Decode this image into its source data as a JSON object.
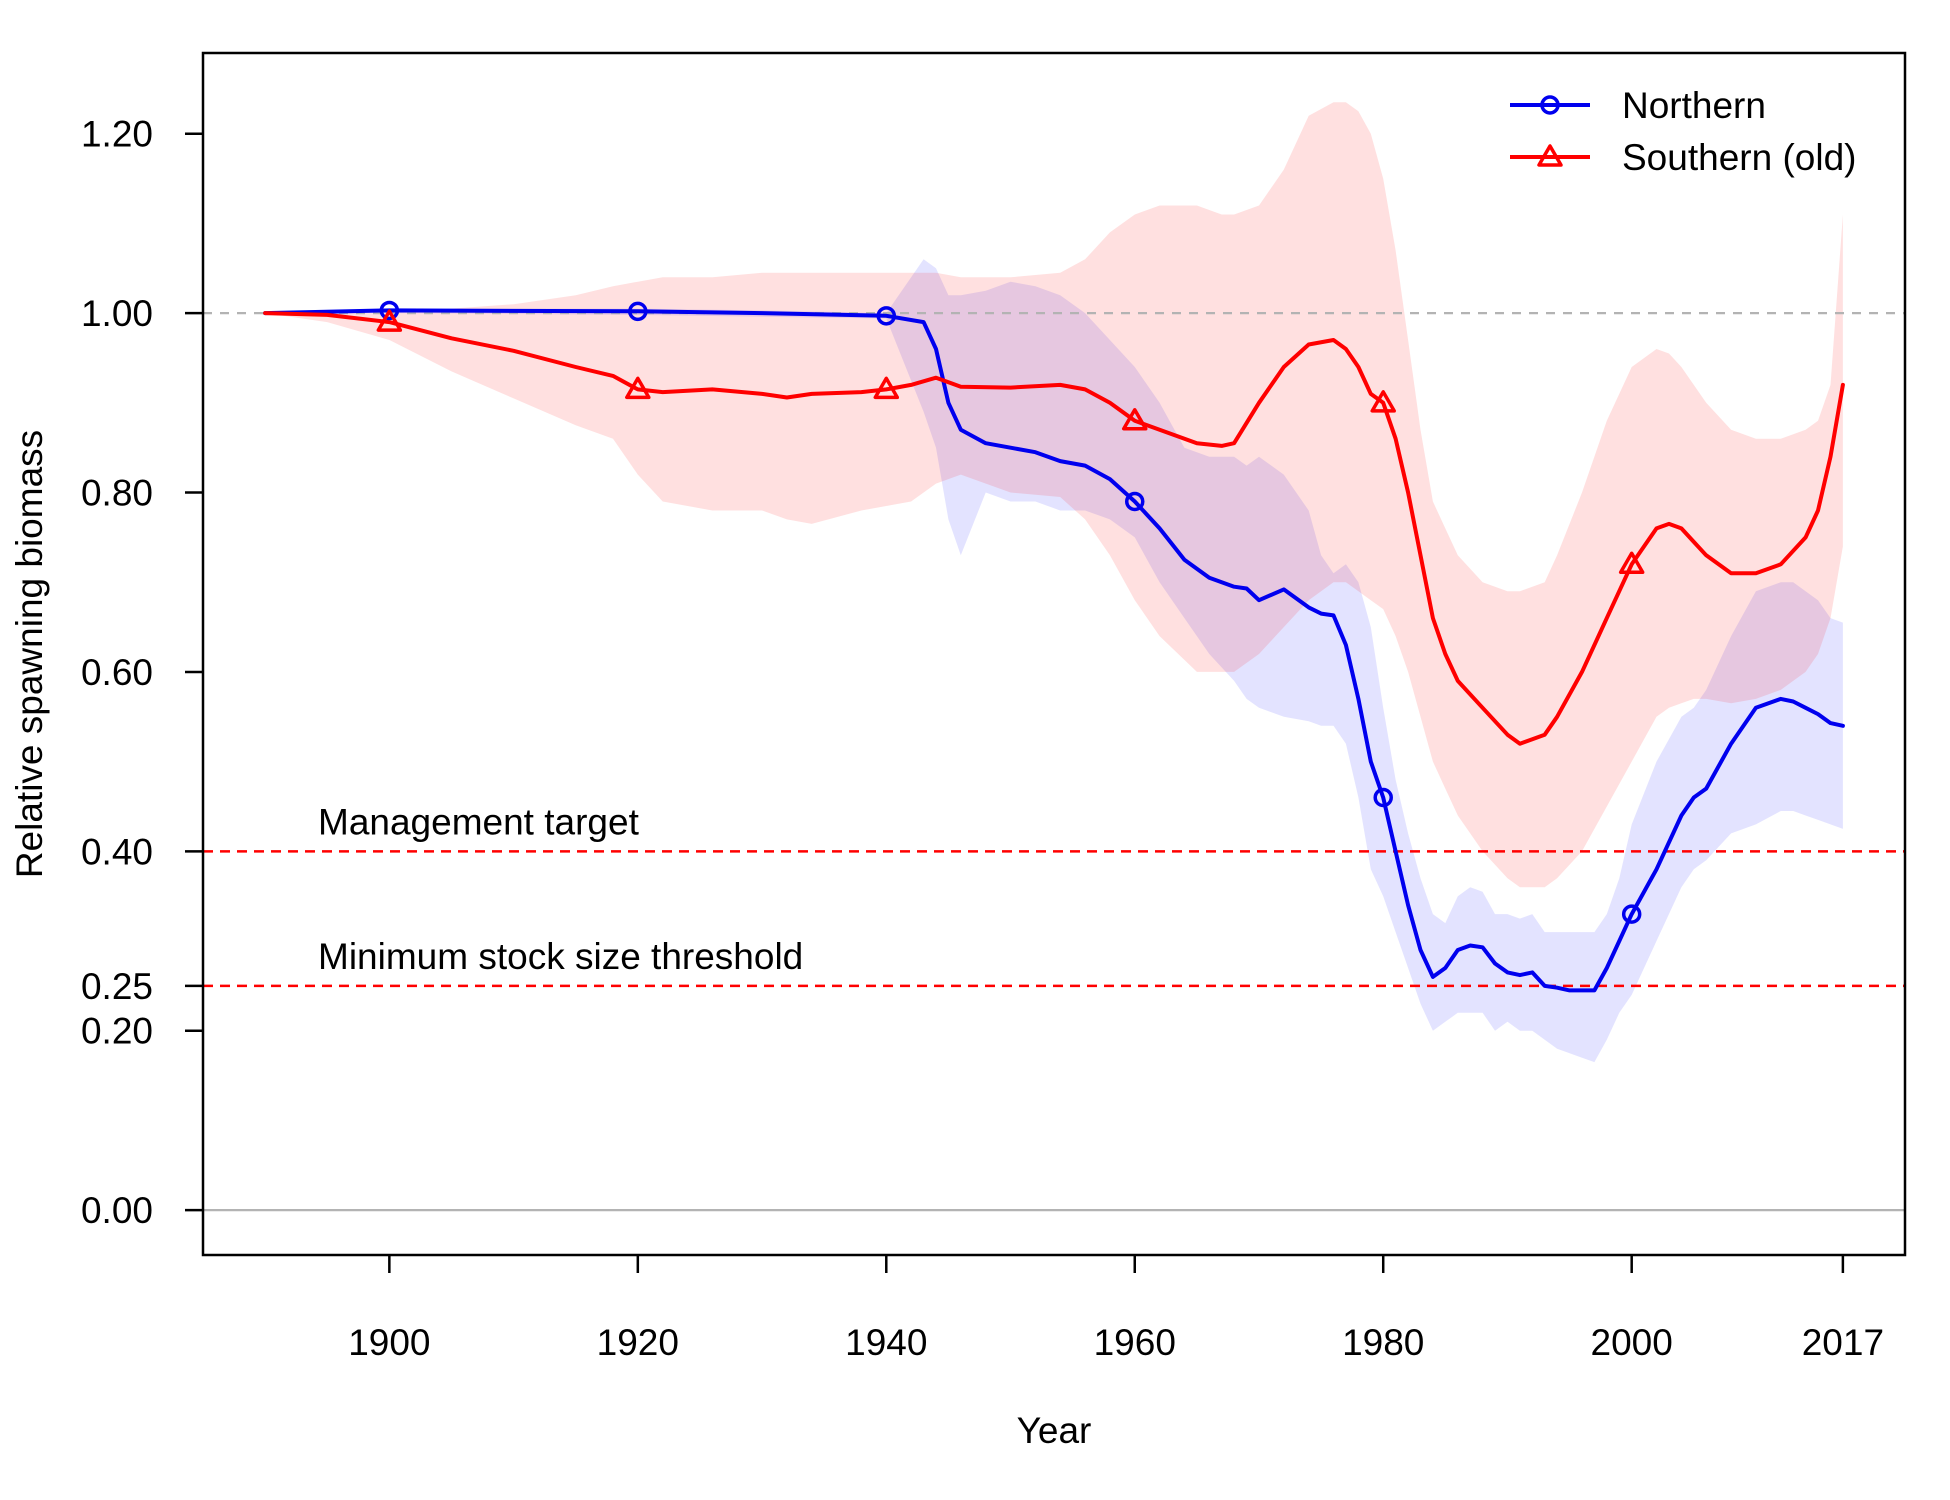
{
  "chart_data": {
    "type": "line",
    "xlabel": "Year",
    "ylabel": "Relative spawning biomass",
    "xlim": [
      1885,
      2022
    ],
    "ylim": [
      -0.05,
      1.29
    ],
    "x_ticks": [
      1900,
      1920,
      1940,
      1960,
      1980,
      2000,
      2017
    ],
    "x_tick_labels": [
      "1900",
      "1920",
      "1940",
      "1960",
      "1980",
      "2000",
      "2017"
    ],
    "y_ticks": [
      0.0,
      0.2,
      0.25,
      0.4,
      0.6,
      0.8,
      1.0,
      1.2
    ],
    "y_tick_labels": [
      "0.00",
      "0.20",
      "0.25",
      "0.40",
      "0.60",
      "0.80",
      "1.00",
      "1.20"
    ],
    "legend": {
      "placement": "top-right"
    },
    "reference_lines": [
      {
        "y": 1.0,
        "style": "dashed",
        "color": "#b3b3b3",
        "label": ""
      },
      {
        "y": 0.4,
        "style": "dashed",
        "color": "#ff0000",
        "label": "Management target"
      },
      {
        "y": 0.25,
        "style": "dashed",
        "color": "#ff0000",
        "label": "Minimum stock size threshold"
      },
      {
        "y": 0.0,
        "style": "solid",
        "color": "#b3b3b3",
        "label": ""
      }
    ],
    "series": [
      {
        "name": "Northern",
        "color": "#0000ee",
        "band_color": "#0000ff",
        "marker": "circle",
        "marker_x": [
          1900,
          1920,
          1940,
          1960,
          1980,
          2000
        ],
        "x": [
          1890,
          1900,
          1920,
          1930,
          1940,
          1943,
          1944,
          1945,
          1946,
          1948,
          1950,
          1952,
          1954,
          1956,
          1958,
          1960,
          1962,
          1964,
          1966,
          1968,
          1969,
          1970,
          1972,
          1974,
          1975,
          1976,
          1977,
          1978,
          1979,
          1980,
          1981,
          1982,
          1983,
          1984,
          1985,
          1986,
          1987,
          1988,
          1989,
          1990,
          1991,
          1992,
          1993,
          1994,
          1995,
          1996,
          1997,
          1998,
          1999,
          2000,
          2002,
          2004,
          2005,
          2006,
          2008,
          2010,
          2012,
          2013,
          2014,
          2015,
          2016,
          2017
        ],
        "y": [
          1.0,
          1.003,
          1.002,
          1.0,
          0.997,
          0.99,
          0.96,
          0.9,
          0.87,
          0.855,
          0.85,
          0.845,
          0.835,
          0.83,
          0.815,
          0.79,
          0.76,
          0.725,
          0.705,
          0.695,
          0.693,
          0.68,
          0.692,
          0.672,
          0.665,
          0.663,
          0.63,
          0.57,
          0.5,
          0.46,
          0.4,
          0.34,
          0.29,
          0.26,
          0.27,
          0.29,
          0.295,
          0.293,
          0.275,
          0.265,
          0.262,
          0.265,
          0.25,
          0.248,
          0.245,
          0.245,
          0.245,
          0.27,
          0.3,
          0.33,
          0.38,
          0.44,
          0.46,
          0.47,
          0.52,
          0.56,
          0.57,
          0.567,
          0.56,
          0.553,
          0.543,
          0.54
        ],
        "upper": [
          1.0,
          1.005,
          1.005,
          1.003,
          1.0,
          1.06,
          1.05,
          1.02,
          1.02,
          1.025,
          1.035,
          1.03,
          1.02,
          1.0,
          0.97,
          0.94,
          0.9,
          0.85,
          0.84,
          0.84,
          0.83,
          0.84,
          0.82,
          0.78,
          0.73,
          0.71,
          0.72,
          0.7,
          0.65,
          0.56,
          0.48,
          0.42,
          0.37,
          0.33,
          0.32,
          0.35,
          0.36,
          0.355,
          0.33,
          0.33,
          0.325,
          0.33,
          0.31,
          0.31,
          0.31,
          0.31,
          0.31,
          0.33,
          0.37,
          0.43,
          0.5,
          0.55,
          0.56,
          0.58,
          0.64,
          0.69,
          0.7,
          0.7,
          0.69,
          0.68,
          0.66,
          0.655
        ],
        "lower": [
          1.0,
          1.0,
          0.998,
          0.996,
          0.994,
          0.89,
          0.85,
          0.77,
          0.73,
          0.8,
          0.79,
          0.79,
          0.78,
          0.78,
          0.77,
          0.75,
          0.7,
          0.66,
          0.62,
          0.59,
          0.57,
          0.56,
          0.55,
          0.545,
          0.54,
          0.54,
          0.52,
          0.46,
          0.38,
          0.35,
          0.31,
          0.27,
          0.23,
          0.2,
          0.21,
          0.22,
          0.22,
          0.22,
          0.2,
          0.21,
          0.2,
          0.2,
          0.19,
          0.18,
          0.175,
          0.17,
          0.165,
          0.19,
          0.22,
          0.24,
          0.3,
          0.36,
          0.38,
          0.39,
          0.42,
          0.43,
          0.445,
          0.445,
          0.44,
          0.435,
          0.43,
          0.425
        ]
      },
      {
        "name": "Southern (old)",
        "color": "#ff0000",
        "band_color": "#ff0000",
        "marker": "triangle",
        "marker_x": [
          1900,
          1920,
          1940,
          1960,
          1980,
          2000
        ],
        "x": [
          1890,
          1895,
          1900,
          1905,
          1910,
          1915,
          1918,
          1920,
          1922,
          1926,
          1930,
          1932,
          1934,
          1938,
          1940,
          1942,
          1944,
          1946,
          1950,
          1954,
          1956,
          1958,
          1960,
          1962,
          1965,
          1967,
          1968,
          1970,
          1972,
          1974,
          1976,
          1977,
          1978,
          1979,
          1980,
          1981,
          1982,
          1983,
          1984,
          1985,
          1986,
          1988,
          1990,
          1991,
          1992,
          1993,
          1994,
          1996,
          1998,
          2000,
          2002,
          2003,
          2004,
          2005,
          2006,
          2008,
          2010,
          2012,
          2014,
          2015,
          2016,
          2017
        ],
        "y": [
          1.0,
          0.998,
          0.99,
          0.972,
          0.958,
          0.94,
          0.93,
          0.915,
          0.912,
          0.915,
          0.91,
          0.906,
          0.91,
          0.912,
          0.915,
          0.92,
          0.928,
          0.918,
          0.917,
          0.92,
          0.915,
          0.9,
          0.88,
          0.87,
          0.855,
          0.852,
          0.855,
          0.9,
          0.94,
          0.965,
          0.97,
          0.96,
          0.94,
          0.91,
          0.9,
          0.86,
          0.8,
          0.73,
          0.66,
          0.62,
          0.59,
          0.56,
          0.53,
          0.52,
          0.525,
          0.53,
          0.55,
          0.6,
          0.66,
          0.72,
          0.76,
          0.765,
          0.76,
          0.745,
          0.73,
          0.71,
          0.71,
          0.72,
          0.75,
          0.78,
          0.84,
          0.92
        ],
        "upper": [
          1.0,
          1.0,
          1.0,
          1.005,
          1.01,
          1.02,
          1.03,
          1.035,
          1.04,
          1.04,
          1.045,
          1.045,
          1.045,
          1.045,
          1.045,
          1.045,
          1.045,
          1.04,
          1.04,
          1.045,
          1.06,
          1.09,
          1.11,
          1.12,
          1.12,
          1.11,
          1.11,
          1.12,
          1.16,
          1.22,
          1.235,
          1.235,
          1.225,
          1.2,
          1.15,
          1.07,
          0.97,
          0.87,
          0.79,
          0.76,
          0.73,
          0.7,
          0.69,
          0.69,
          0.695,
          0.7,
          0.73,
          0.8,
          0.88,
          0.94,
          0.96,
          0.955,
          0.94,
          0.92,
          0.9,
          0.87,
          0.86,
          0.86,
          0.87,
          0.88,
          0.92,
          1.11
        ],
        "lower": [
          1.0,
          0.99,
          0.97,
          0.935,
          0.905,
          0.875,
          0.86,
          0.82,
          0.79,
          0.78,
          0.78,
          0.77,
          0.765,
          0.78,
          0.785,
          0.79,
          0.81,
          0.82,
          0.8,
          0.795,
          0.77,
          0.73,
          0.68,
          0.64,
          0.6,
          0.6,
          0.6,
          0.62,
          0.65,
          0.68,
          0.7,
          0.7,
          0.69,
          0.68,
          0.67,
          0.64,
          0.6,
          0.55,
          0.5,
          0.47,
          0.44,
          0.4,
          0.37,
          0.36,
          0.36,
          0.36,
          0.37,
          0.4,
          0.45,
          0.5,
          0.55,
          0.56,
          0.565,
          0.57,
          0.57,
          0.565,
          0.57,
          0.58,
          0.6,
          0.62,
          0.66,
          0.74
        ]
      }
    ]
  }
}
